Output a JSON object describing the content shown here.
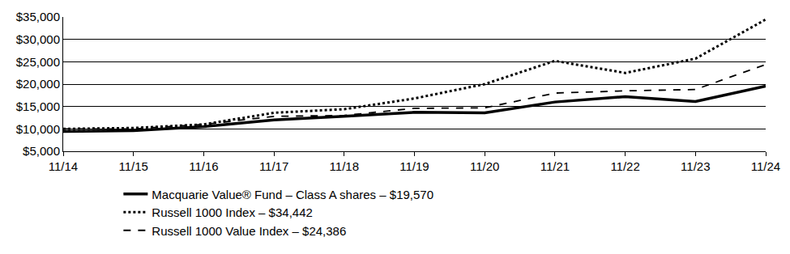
{
  "chart_data": {
    "type": "line",
    "categories": [
      "11/14",
      "11/15",
      "11/16",
      "11/17",
      "11/18",
      "11/19",
      "11/20",
      "11/21",
      "11/22",
      "11/23",
      "11/24"
    ],
    "series": [
      {
        "name": "Macquarie Value® Fund – Class A shares – $19,570",
        "color": "#000000",
        "line_style": "solid",
        "values": [
          9425,
          9600,
          10500,
          12000,
          12800,
          13700,
          13600,
          16000,
          17200,
          16100,
          19570
        ]
      },
      {
        "name": "Russell 1000 Index – $34,442",
        "color": "#000000",
        "line_style": "dotted",
        "values": [
          10000,
          10200,
          11000,
          13600,
          14400,
          16800,
          20000,
          25200,
          22500,
          25700,
          34442
        ]
      },
      {
        "name": "Russell 1000 Value Index – $24,386",
        "color": "#000000",
        "line_style": "dashed",
        "values": [
          10000,
          10000,
          11000,
          12800,
          13000,
          14600,
          14700,
          18000,
          18500,
          18800,
          24386
        ]
      }
    ],
    "ylim": [
      5000,
      35000
    ],
    "yticks": [
      {
        "value": 5000,
        "label": "$5,000"
      },
      {
        "value": 10000,
        "label": "$10,000"
      },
      {
        "value": 15000,
        "label": "$15,000"
      },
      {
        "value": 20000,
        "label": "$20,000"
      },
      {
        "value": 25000,
        "label": "$25,000"
      },
      {
        "value": 30000,
        "label": "$30,000"
      },
      {
        "value": 35000,
        "label": "$35,000"
      }
    ],
    "grid": true,
    "legend": "bottom"
  }
}
